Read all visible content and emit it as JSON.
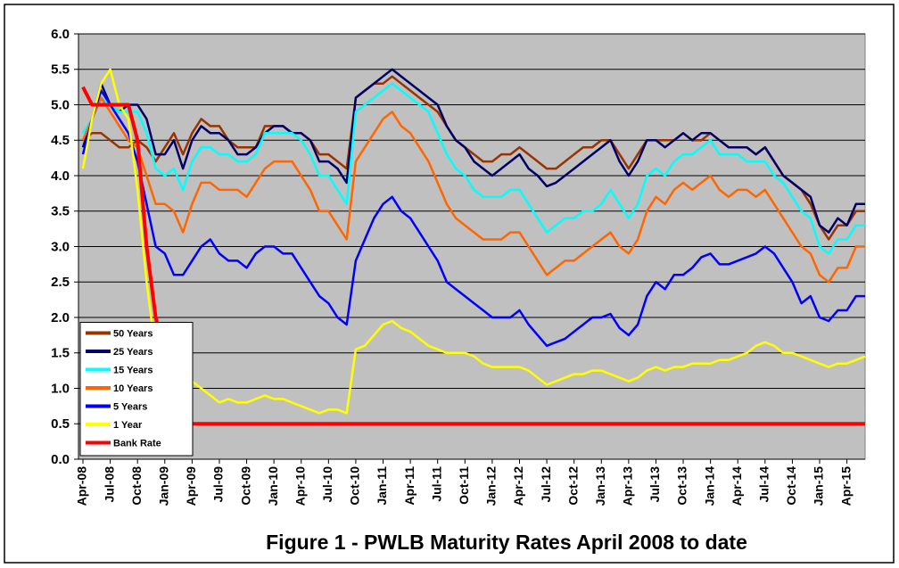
{
  "chart_data": {
    "type": "line",
    "title": "Figure 1 - PWLB Maturity Rates April 2008 to date",
    "categories": [
      "Apr-08",
      null,
      null,
      "Jul-08",
      null,
      null,
      "Oct-08",
      null,
      null,
      "Jan-09",
      null,
      null,
      "Apr-09",
      null,
      null,
      "Jul-09",
      null,
      null,
      "Oct-09",
      null,
      null,
      "Jan-10",
      null,
      null,
      "Apr-10",
      null,
      null,
      "Jul-10",
      null,
      null,
      "Oct-10",
      null,
      null,
      "Jan-11",
      null,
      null,
      "Apr-11",
      null,
      null,
      "Jul-11",
      null,
      null,
      "Oct-11",
      null,
      null,
      "Jan-12",
      null,
      null,
      "Apr-12",
      null,
      null,
      "Jul-12",
      null,
      null,
      "Oct-12",
      null,
      null,
      "Jan-13",
      null,
      null,
      "Apr-13",
      null,
      null,
      "Jul-13",
      null,
      null,
      "Oct-13",
      null,
      null,
      "Jan-14",
      null,
      null,
      "Apr-14",
      null,
      null,
      "Jul-14",
      null,
      null,
      "Oct-14",
      null,
      null,
      "Jan-15",
      null,
      null,
      "Apr-15",
      null,
      null
    ],
    "ylim": [
      0,
      6
    ],
    "yticks": [
      {
        "value": 0,
        "label": "0.0"
      },
      0.5,
      {
        "value": 1,
        "label": "1.0"
      },
      1.5,
      {
        "value": 2,
        "label": "2.0"
      },
      2.5,
      {
        "value": 3,
        "label": "3.0"
      },
      3.5,
      {
        "value": 4,
        "label": "4.0"
      },
      4.5,
      {
        "value": 5,
        "label": "5.0"
      },
      5.5,
      {
        "value": 6,
        "label": "6.0"
      }
    ],
    "grid": true,
    "legend": "lower left",
    "series": [
      {
        "name": "50 Years",
        "color": "#993300",
        "values": [
          4.5,
          4.6,
          4.6,
          4.5,
          4.4,
          4.4,
          4.5,
          4.4,
          4.2,
          4.4,
          4.6,
          4.3,
          4.6,
          4.8,
          4.7,
          4.7,
          4.5,
          4.4,
          4.4,
          4.4,
          4.7,
          4.7,
          4.7,
          4.6,
          4.6,
          4.5,
          4.3,
          4.3,
          4.2,
          4.1,
          5.1,
          5.2,
          5.3,
          5.3,
          5.4,
          5.3,
          5.2,
          5.1,
          5.0,
          4.9,
          4.7,
          4.5,
          4.4,
          4.3,
          4.2,
          4.2,
          4.3,
          4.3,
          4.4,
          4.3,
          4.2,
          4.1,
          4.1,
          4.2,
          4.3,
          4.4,
          4.4,
          4.5,
          4.5,
          4.3,
          4.1,
          4.3,
          4.5,
          4.5,
          4.5,
          4.5,
          4.6,
          4.5,
          4.5,
          4.6,
          4.5,
          4.4,
          4.4,
          4.4,
          4.3,
          4.4,
          4.2,
          4.0,
          3.9,
          3.8,
          3.6,
          3.3,
          3.1,
          3.3,
          3.3,
          3.5,
          3.5
        ]
      },
      {
        "name": "25 Years",
        "color": "#000066",
        "values": [
          4.4,
          4.8,
          5.3,
          5.0,
          4.9,
          5.0,
          5.0,
          4.8,
          4.3,
          4.3,
          4.5,
          4.1,
          4.5,
          4.7,
          4.6,
          4.6,
          4.5,
          4.3,
          4.3,
          4.4,
          4.6,
          4.7,
          4.7,
          4.6,
          4.6,
          4.5,
          4.2,
          4.2,
          4.1,
          3.9,
          5.1,
          5.2,
          5.3,
          5.4,
          5.5,
          5.4,
          5.3,
          5.2,
          5.1,
          5.0,
          4.7,
          4.5,
          4.4,
          4.2,
          4.1,
          4.0,
          4.1,
          4.2,
          4.3,
          4.1,
          4.0,
          3.85,
          3.9,
          4.0,
          4.1,
          4.2,
          4.3,
          4.4,
          4.5,
          4.2,
          4.0,
          4.2,
          4.5,
          4.5,
          4.4,
          4.5,
          4.6,
          4.5,
          4.6,
          4.6,
          4.5,
          4.4,
          4.4,
          4.4,
          4.3,
          4.4,
          4.2,
          4.0,
          3.9,
          3.8,
          3.7,
          3.3,
          3.2,
          3.4,
          3.3,
          3.6,
          3.6
        ]
      },
      {
        "name": "15 Years",
        "color": "#00ffff",
        "values": [
          4.6,
          4.8,
          5.1,
          5.0,
          4.9,
          4.9,
          4.9,
          4.6,
          4.1,
          4.0,
          4.1,
          3.8,
          4.2,
          4.4,
          4.4,
          4.3,
          4.3,
          4.2,
          4.2,
          4.3,
          4.6,
          4.6,
          4.6,
          4.6,
          4.5,
          4.3,
          4.0,
          4.0,
          3.8,
          3.6,
          4.9,
          5.0,
          5.1,
          5.2,
          5.3,
          5.2,
          5.1,
          5.0,
          4.9,
          4.6,
          4.3,
          4.1,
          4.0,
          3.8,
          3.7,
          3.7,
          3.7,
          3.8,
          3.8,
          3.6,
          3.4,
          3.2,
          3.3,
          3.4,
          3.4,
          3.5,
          3.5,
          3.6,
          3.8,
          3.6,
          3.4,
          3.6,
          4.0,
          4.1,
          4.0,
          4.2,
          4.3,
          4.3,
          4.4,
          4.5,
          4.3,
          4.3,
          4.3,
          4.2,
          4.2,
          4.2,
          4.0,
          3.9,
          3.7,
          3.5,
          3.4,
          3.0,
          2.9,
          3.1,
          3.1,
          3.3,
          3.3
        ]
      },
      {
        "name": "10 Years",
        "color": "#ff6600",
        "values": [
          4.5,
          4.8,
          5.1,
          4.9,
          4.7,
          4.5,
          4.4,
          4.0,
          3.6,
          3.6,
          3.5,
          3.2,
          3.6,
          3.9,
          3.9,
          3.8,
          3.8,
          3.8,
          3.7,
          3.9,
          4.1,
          4.2,
          4.2,
          4.2,
          4.0,
          3.8,
          3.5,
          3.5,
          3.3,
          3.1,
          4.2,
          4.4,
          4.6,
          4.8,
          4.9,
          4.7,
          4.6,
          4.4,
          4.2,
          3.9,
          3.6,
          3.4,
          3.3,
          3.2,
          3.1,
          3.1,
          3.1,
          3.2,
          3.2,
          3.0,
          2.8,
          2.6,
          2.7,
          2.8,
          2.8,
          2.9,
          3.0,
          3.1,
          3.2,
          3.0,
          2.9,
          3.1,
          3.5,
          3.7,
          3.6,
          3.8,
          3.9,
          3.8,
          3.9,
          4.0,
          3.8,
          3.7,
          3.8,
          3.8,
          3.7,
          3.8,
          3.6,
          3.4,
          3.2,
          3.0,
          2.9,
          2.6,
          2.5,
          2.7,
          2.7,
          3.0,
          3.0
        ]
      },
      {
        "name": "5 Years",
        "color": "#0000ff",
        "values": [
          4.3,
          4.8,
          5.2,
          5.0,
          4.8,
          4.6,
          4.2,
          3.6,
          3.0,
          2.9,
          2.6,
          2.6,
          2.8,
          3.0,
          3.1,
          2.9,
          2.8,
          2.8,
          2.7,
          2.9,
          3.0,
          3.0,
          2.9,
          2.9,
          2.7,
          2.5,
          2.3,
          2.2,
          2.0,
          1.9,
          2.8,
          3.1,
          3.4,
          3.6,
          3.7,
          3.5,
          3.4,
          3.2,
          3.0,
          2.8,
          2.5,
          2.4,
          2.3,
          2.2,
          2.1,
          2.0,
          2.0,
          2.0,
          2.1,
          1.9,
          1.75,
          1.6,
          1.65,
          1.7,
          1.8,
          1.9,
          2.0,
          2.0,
          2.05,
          1.85,
          1.75,
          1.9,
          2.3,
          2.5,
          2.4,
          2.6,
          2.6,
          2.7,
          2.85,
          2.9,
          2.75,
          2.75,
          2.8,
          2.85,
          2.9,
          3.0,
          2.9,
          2.7,
          2.5,
          2.2,
          2.3,
          2.0,
          1.95,
          2.1,
          2.1,
          2.3,
          2.3
        ]
      },
      {
        "name": "1 Year",
        "color": "#ffff00",
        "values": [
          4.1,
          4.8,
          5.3,
          5.5,
          5.0,
          4.8,
          3.8,
          2.5,
          1.5,
          1.0,
          0.9,
          1.0,
          1.1,
          1.0,
          0.9,
          0.8,
          0.85,
          0.8,
          0.8,
          0.85,
          0.9,
          0.85,
          0.85,
          0.8,
          0.75,
          0.7,
          0.65,
          0.7,
          0.7,
          0.65,
          1.55,
          1.6,
          1.75,
          1.9,
          1.95,
          1.85,
          1.8,
          1.7,
          1.6,
          1.55,
          1.5,
          1.5,
          1.5,
          1.45,
          1.35,
          1.3,
          1.3,
          1.3,
          1.3,
          1.25,
          1.15,
          1.05,
          1.1,
          1.15,
          1.2,
          1.2,
          1.25,
          1.25,
          1.2,
          1.15,
          1.1,
          1.15,
          1.25,
          1.3,
          1.25,
          1.3,
          1.3,
          1.35,
          1.35,
          1.35,
          1.4,
          1.4,
          1.45,
          1.5,
          1.6,
          1.65,
          1.6,
          1.5,
          1.5,
          1.45,
          1.4,
          1.35,
          1.3,
          1.35,
          1.35,
          1.4,
          1.45
        ]
      },
      {
        "name": "Bank Rate",
        "color": "#ff0000",
        "values": [
          5.25,
          5.0,
          5.0,
          5.0,
          5.0,
          5.0,
          4.5,
          3.0,
          2.0,
          1.5,
          1.0,
          0.5,
          0.5,
          0.5,
          0.5,
          0.5,
          0.5,
          0.5,
          0.5,
          0.5,
          0.5,
          0.5,
          0.5,
          0.5,
          0.5,
          0.5,
          0.5,
          0.5,
          0.5,
          0.5,
          0.5,
          0.5,
          0.5,
          0.5,
          0.5,
          0.5,
          0.5,
          0.5,
          0.5,
          0.5,
          0.5,
          0.5,
          0.5,
          0.5,
          0.5,
          0.5,
          0.5,
          0.5,
          0.5,
          0.5,
          0.5,
          0.5,
          0.5,
          0.5,
          0.5,
          0.5,
          0.5,
          0.5,
          0.5,
          0.5,
          0.5,
          0.5,
          0.5,
          0.5,
          0.5,
          0.5,
          0.5,
          0.5,
          0.5,
          0.5,
          0.5,
          0.5,
          0.5,
          0.5,
          0.5,
          0.5,
          0.5,
          0.5,
          0.5,
          0.5,
          0.5,
          0.5,
          0.5,
          0.5,
          0.5,
          0.5,
          0.5
        ]
      }
    ]
  }
}
